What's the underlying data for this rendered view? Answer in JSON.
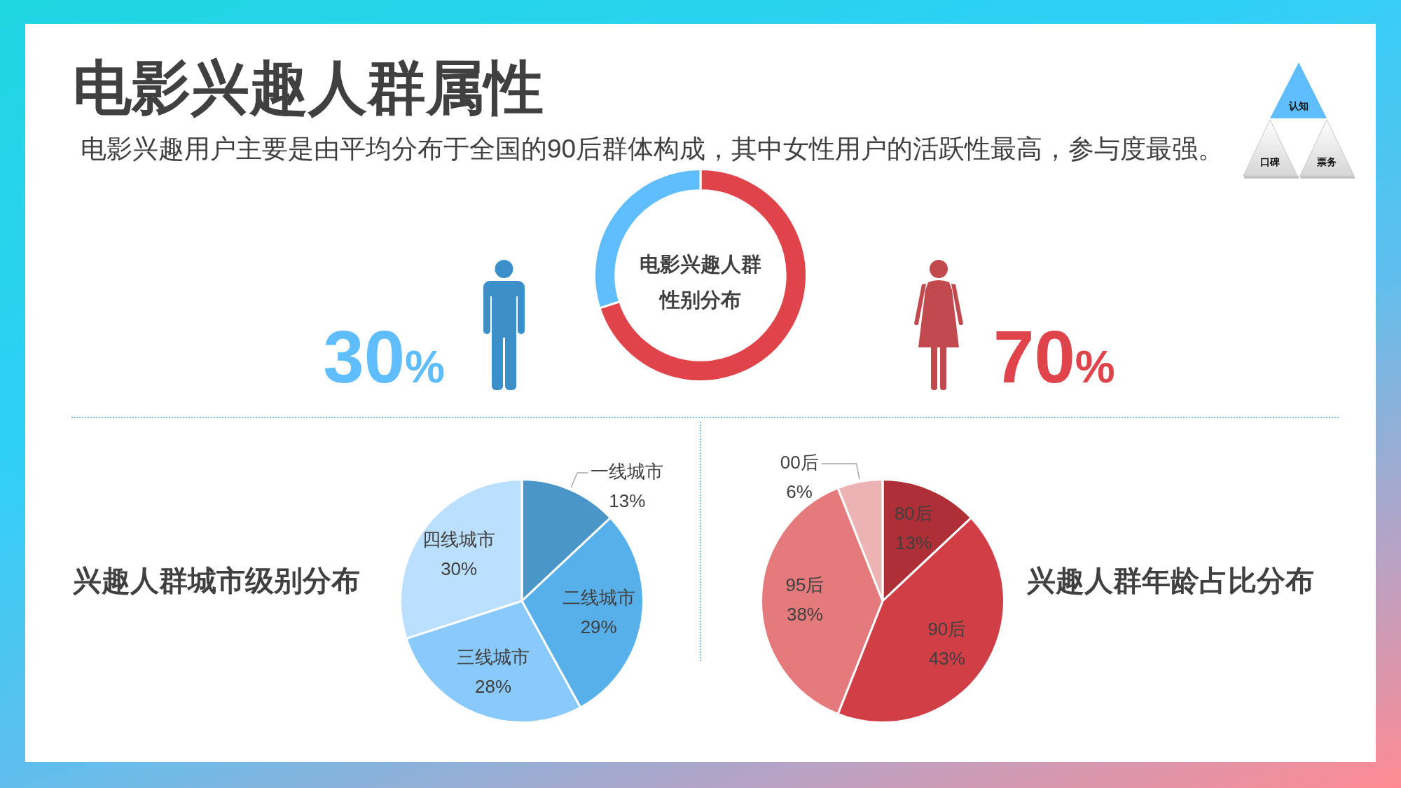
{
  "chart_data": [
    {
      "type": "other",
      "title": "电影兴趣人群属性",
      "subtitle": "电影兴趣用户主要是由平均分布于全国的90后群体构成，其中女性用户的活跃性最高，参与度最强。",
      "annotations": [
        "认知",
        "口碑",
        "票务"
      ]
    },
    {
      "type": "donut",
      "title": "电影兴趣人群性别分布",
      "categories": [
        null,
        null
      ],
      "values": [
        70,
        30
      ],
      "colors": [
        "#e0444b",
        "#5fbdfb"
      ],
      "value_labels": [
        "70%",
        "30%"
      ]
    },
    {
      "type": "pie",
      "title": "兴趣人群城市级别分布",
      "categories": [
        "一线城市",
        "二线城市",
        "三线城市",
        "四线城市"
      ],
      "values": [
        13,
        29,
        28,
        30
      ],
      "colors": [
        "#4a96c9",
        "#58b0eb",
        "#89c9fb",
        "#bbdffe"
      ],
      "value_labels": [
        "13%",
        "29%",
        "28%",
        "30%"
      ]
    },
    {
      "type": "pie",
      "title": "兴趣人群年龄占比分布",
      "categories": [
        "80后",
        "90后",
        "95后",
        "00后"
      ],
      "values": [
        13,
        43,
        38,
        6
      ],
      "colors": [
        "#ae3036",
        "#d13f46",
        "#e47a7b",
        "#edb3b4"
      ],
      "value_labels": [
        "13%",
        "43%",
        "38%",
        "6%"
      ]
    }
  ]
}
